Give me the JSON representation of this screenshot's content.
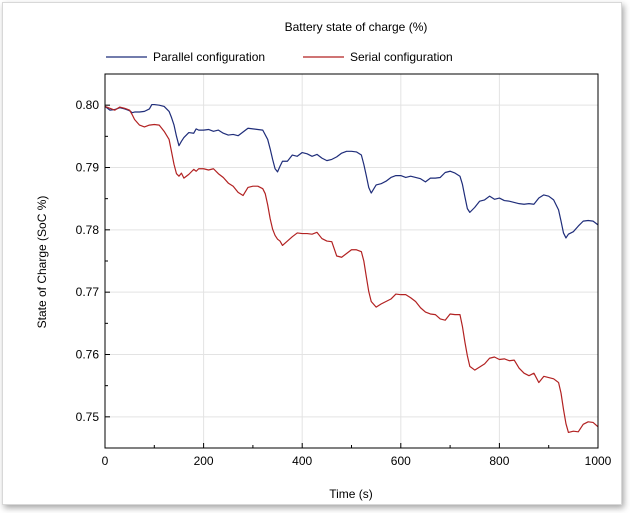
{
  "chart_data": {
    "type": "line",
    "title": "Battery state of charge (%)",
    "xlabel": "Time (s)",
    "ylabel": "State of Charge (SoC %)",
    "xlim": [
      0,
      1000
    ],
    "ylim": [
      0.745,
      0.805
    ],
    "x_ticks": [
      0,
      200,
      400,
      600,
      800,
      1000
    ],
    "y_ticks": [
      0.75,
      0.76,
      0.77,
      0.78,
      0.79,
      0.8
    ],
    "x_tick_labels": [
      "0",
      "200",
      "400",
      "600",
      "800",
      "1000"
    ],
    "y_tick_labels": [
      "0.75",
      "0.76",
      "0.77",
      "0.78",
      "0.79",
      "0.80"
    ],
    "grid": true,
    "legend": "top",
    "series": [
      {
        "name": "Parallel configuration",
        "color": "#1f2d7a",
        "x": [
          0,
          10,
          20,
          30,
          40,
          50,
          55,
          60,
          70,
          80,
          90,
          95,
          100,
          110,
          120,
          130,
          135,
          140,
          145,
          150,
          155,
          160,
          170,
          180,
          185,
          190,
          200,
          210,
          220,
          230,
          240,
          250,
          260,
          270,
          280,
          290,
          300,
          310,
          320,
          330,
          335,
          340,
          345,
          350,
          355,
          360,
          370,
          380,
          390,
          400,
          410,
          420,
          430,
          440,
          450,
          460,
          470,
          480,
          490,
          500,
          510,
          520,
          525,
          530,
          535,
          540,
          550,
          560,
          570,
          580,
          590,
          600,
          610,
          620,
          630,
          640,
          650,
          660,
          670,
          680,
          690,
          700,
          710,
          720,
          725,
          730,
          735,
          740,
          750,
          760,
          770,
          780,
          790,
          800,
          810,
          820,
          830,
          840,
          850,
          860,
          870,
          880,
          890,
          900,
          910,
          920,
          925,
          930,
          935,
          940,
          950,
          960,
          970,
          980,
          990,
          1000
        ],
        "y": [
          0.7998,
          0.7992,
          0.7993,
          0.7996,
          0.7994,
          0.7991,
          0.7988,
          0.7989,
          0.7989,
          0.799,
          0.7994,
          0.8001,
          0.8001,
          0.8,
          0.7998,
          0.799,
          0.798,
          0.7968,
          0.795,
          0.7935,
          0.7942,
          0.7948,
          0.7956,
          0.7955,
          0.7962,
          0.796,
          0.796,
          0.7961,
          0.7958,
          0.796,
          0.7955,
          0.7952,
          0.7953,
          0.7951,
          0.7957,
          0.7963,
          0.7962,
          0.7961,
          0.796,
          0.7945,
          0.793,
          0.7913,
          0.7898,
          0.7893,
          0.7902,
          0.791,
          0.791,
          0.792,
          0.7918,
          0.7924,
          0.7922,
          0.7918,
          0.7921,
          0.7915,
          0.7911,
          0.7913,
          0.7917,
          0.7923,
          0.7926,
          0.7926,
          0.7925,
          0.792,
          0.7905,
          0.7887,
          0.7868,
          0.7859,
          0.7872,
          0.7874,
          0.7878,
          0.7884,
          0.7887,
          0.7887,
          0.7884,
          0.7886,
          0.7884,
          0.7882,
          0.7877,
          0.7883,
          0.7883,
          0.7884,
          0.7892,
          0.7894,
          0.7891,
          0.7886,
          0.7873,
          0.7853,
          0.7834,
          0.7828,
          0.7836,
          0.7846,
          0.7848,
          0.7854,
          0.7849,
          0.7851,
          0.7847,
          0.7846,
          0.7844,
          0.7842,
          0.7841,
          0.7842,
          0.7841,
          0.7851,
          0.7856,
          0.7854,
          0.7848,
          0.7832,
          0.7814,
          0.7795,
          0.7787,
          0.7793,
          0.7797,
          0.7806,
          0.7814,
          0.7815,
          0.7814,
          0.7808
        ]
      },
      {
        "name": "Serial configuration",
        "color": "#b22222",
        "x": [
          0,
          10,
          20,
          30,
          40,
          50,
          55,
          60,
          70,
          80,
          90,
          100,
          110,
          120,
          130,
          135,
          140,
          145,
          150,
          155,
          160,
          170,
          180,
          185,
          190,
          200,
          210,
          220,
          230,
          240,
          250,
          260,
          270,
          280,
          290,
          300,
          310,
          320,
          325,
          330,
          335,
          340,
          345,
          350,
          355,
          360,
          370,
          380,
          390,
          400,
          410,
          420,
          430,
          440,
          450,
          460,
          470,
          480,
          490,
          500,
          510,
          520,
          525,
          530,
          535,
          540,
          550,
          560,
          570,
          580,
          590,
          600,
          610,
          620,
          630,
          640,
          650,
          660,
          670,
          680,
          690,
          700,
          710,
          720,
          725,
          730,
          735,
          740,
          750,
          760,
          770,
          780,
          790,
          800,
          810,
          820,
          830,
          840,
          850,
          860,
          870,
          880,
          890,
          900,
          910,
          920,
          925,
          930,
          935,
          940,
          950,
          960,
          970,
          980,
          990,
          1000
        ],
        "y": [
          0.7998,
          0.7995,
          0.7992,
          0.7997,
          0.7995,
          0.7992,
          0.7985,
          0.7977,
          0.7968,
          0.7965,
          0.7968,
          0.7969,
          0.7968,
          0.7958,
          0.7945,
          0.7925,
          0.7905,
          0.789,
          0.7886,
          0.7891,
          0.7883,
          0.7889,
          0.7897,
          0.7894,
          0.7898,
          0.7898,
          0.7896,
          0.7898,
          0.789,
          0.7884,
          0.7875,
          0.787,
          0.786,
          0.7855,
          0.7868,
          0.787,
          0.787,
          0.7866,
          0.7858,
          0.784,
          0.7818,
          0.7801,
          0.7791,
          0.7785,
          0.7782,
          0.7775,
          0.7782,
          0.7789,
          0.7795,
          0.7794,
          0.7794,
          0.7793,
          0.7796,
          0.7786,
          0.7782,
          0.7781,
          0.7758,
          0.7756,
          0.7762,
          0.7768,
          0.7768,
          0.7765,
          0.775,
          0.7725,
          0.7701,
          0.7685,
          0.7676,
          0.7681,
          0.7685,
          0.7689,
          0.7697,
          0.7696,
          0.7696,
          0.7691,
          0.7685,
          0.7675,
          0.7668,
          0.7665,
          0.7664,
          0.7657,
          0.7655,
          0.7665,
          0.7664,
          0.7664,
          0.7645,
          0.762,
          0.7598,
          0.7581,
          0.7575,
          0.758,
          0.7585,
          0.7594,
          0.7596,
          0.7592,
          0.7593,
          0.759,
          0.7591,
          0.7578,
          0.757,
          0.7566,
          0.757,
          0.7555,
          0.7565,
          0.7563,
          0.7561,
          0.7555,
          0.7538,
          0.7512,
          0.7489,
          0.7475,
          0.7477,
          0.7476,
          0.7488,
          0.7492,
          0.7491,
          0.7484
        ]
      }
    ]
  }
}
